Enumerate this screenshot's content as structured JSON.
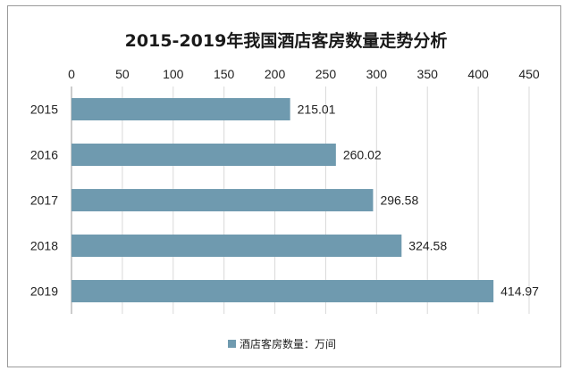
{
  "chart_data": {
    "type": "bar",
    "orientation": "horizontal",
    "title": "2015-2019年我国酒店客房数量走势分析",
    "categories": [
      "2015",
      "2016",
      "2017",
      "2018",
      "2019"
    ],
    "series": [
      {
        "name": "酒店客房数量：万间",
        "values": [
          215.01,
          260.02,
          296.58,
          324.58,
          414.97
        ],
        "data_labels": [
          "215.01",
          "260.02",
          "296.58",
          "324.58",
          "414.97"
        ],
        "color": "#6f9aaf"
      }
    ],
    "xlim": [
      0,
      450
    ],
    "x_ticks": [
      "0",
      "50",
      "100",
      "150",
      "200",
      "250",
      "300",
      "350",
      "400",
      "450"
    ],
    "x_axis_position": "top",
    "grid": true,
    "legend_position": "bottom"
  }
}
